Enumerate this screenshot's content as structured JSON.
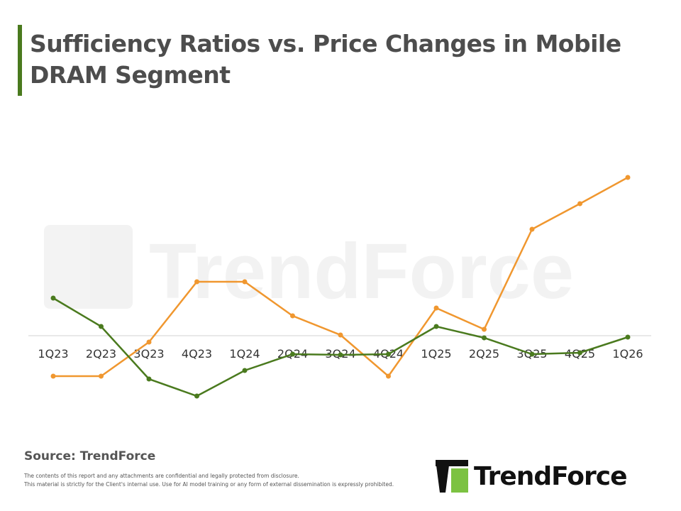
{
  "header": {
    "title": "Sufficiency Ratios vs. Price Changes in Mobile DRAM Segment"
  },
  "chart_data": {
    "type": "line",
    "title": "Sufficiency Ratios vs. Price Changes in Mobile DRAM Segment",
    "categories": [
      "1Q23",
      "2Q23",
      "3Q23",
      "4Q23",
      "1Q24",
      "2Q24",
      "3Q24",
      "4Q24",
      "1Q25",
      "2Q25",
      "3Q25",
      "4Q25",
      "1Q26"
    ],
    "series": [
      {
        "color": "#f0972f",
        "values": [
          -5.7,
          -5.7,
          -0.9,
          7.6,
          7.6,
          2.8,
          0.1,
          -5.7,
          3.9,
          0.9,
          15.0,
          18.6,
          22.3
        ]
      },
      {
        "color": "#4a7a1e",
        "values": [
          5.3,
          1.3,
          -6.1,
          -8.5,
          -4.9,
          -2.6,
          -2.7,
          -2.6,
          1.3,
          -0.3,
          -2.6,
          -2.4,
          -0.2
        ]
      }
    ],
    "ylim": [
      -12,
      24
    ],
    "zero_line": true,
    "grid": false,
    "y_tick_labels": false,
    "legend": "none",
    "watermark": "TrendForce"
  },
  "footer": {
    "source": "Source: TrendForce",
    "disclaimer_1": "The contents of this report and any attachments are confidential and legally protected from disclosure.",
    "disclaimer_2": "This material is strictly for the Client's internal use. Use for AI model training or any form of external dissemination is expressly prohibited.",
    "logo_text": "TrendForce"
  }
}
